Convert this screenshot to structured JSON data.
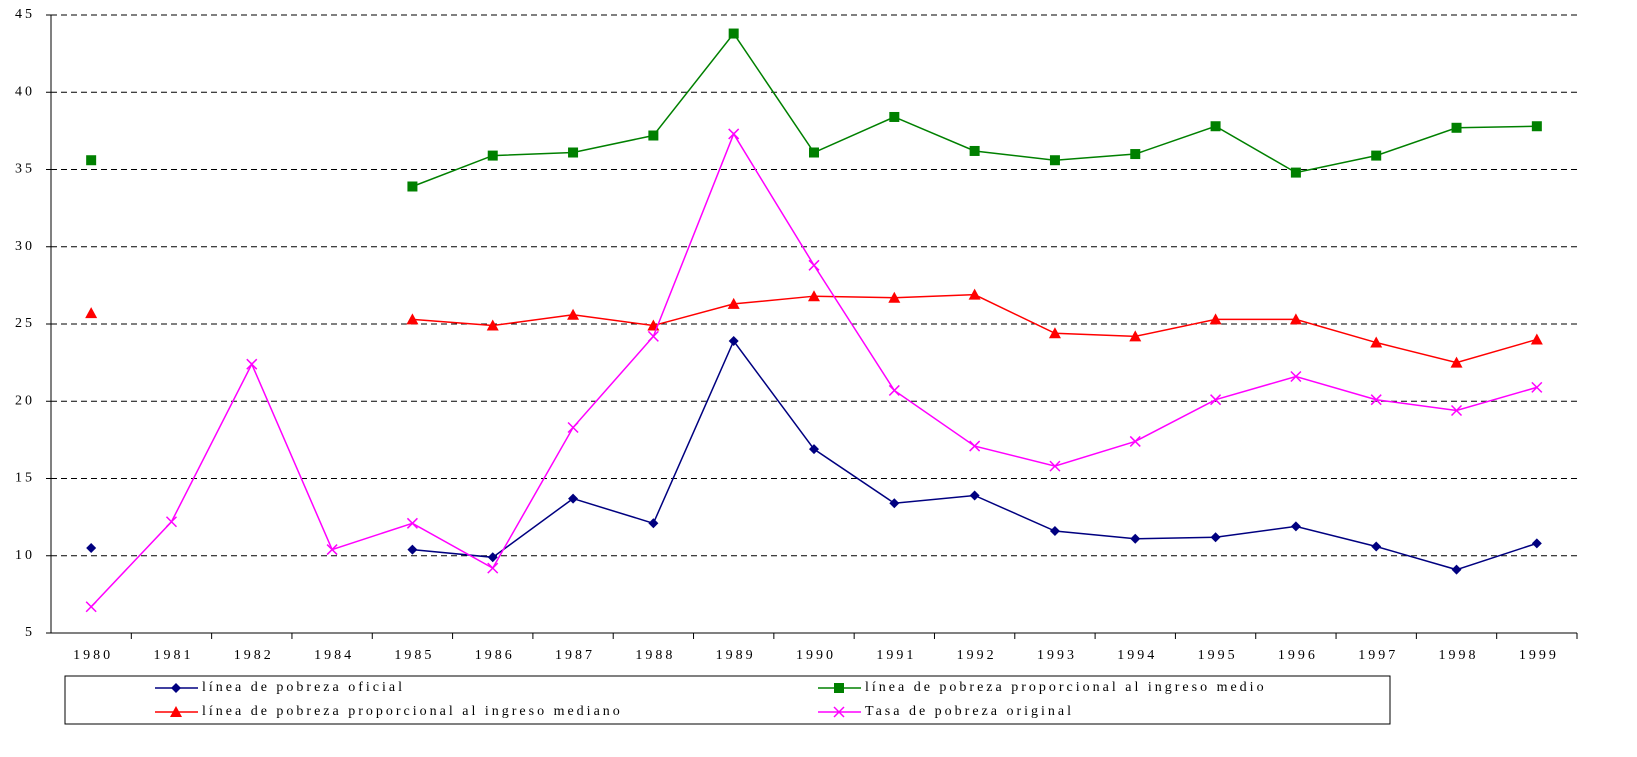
{
  "chart_data": {
    "type": "line",
    "categories": [
      "1980",
      "1981",
      "1982",
      "1984",
      "1985",
      "1986",
      "1987",
      "1988",
      "1989",
      "1990",
      "1991",
      "1992",
      "1993",
      "1994",
      "1995",
      "1996",
      "1997",
      "1998",
      "1999"
    ],
    "series": [
      {
        "name": "línea de pobreza oficial",
        "color": "#000080",
        "marker": "diamond",
        "values": [
          10.5,
          null,
          null,
          null,
          10.4,
          9.9,
          13.7,
          12.1,
          23.9,
          16.9,
          13.4,
          13.9,
          11.6,
          11.1,
          11.2,
          11.9,
          10.6,
          9.1,
          10.8
        ]
      },
      {
        "name": "línea de pobreza proporcional al ingreso medio",
        "color": "#008000",
        "marker": "square",
        "values": [
          35.6,
          null,
          null,
          null,
          33.9,
          35.9,
          36.1,
          37.2,
          43.8,
          36.1,
          38.4,
          36.2,
          35.6,
          36.0,
          37.8,
          34.8,
          35.9,
          37.7,
          37.8
        ]
      },
      {
        "name": "línea de pobreza proporcional al ingreso mediano",
        "color": "#ff0000",
        "marker": "triangle",
        "values": [
          25.7,
          null,
          null,
          null,
          25.3,
          24.9,
          25.6,
          24.9,
          26.3,
          26.8,
          26.7,
          26.9,
          24.4,
          24.2,
          25.3,
          25.3,
          23.8,
          22.5,
          24.0
        ]
      },
      {
        "name": "Tasa de pobreza original",
        "color": "#ff00ff",
        "marker": "x",
        "values": [
          6.7,
          12.2,
          22.4,
          10.4,
          12.1,
          9.2,
          18.3,
          24.2,
          37.3,
          28.8,
          20.7,
          17.1,
          15.8,
          17.4,
          20.1,
          21.6,
          20.1,
          19.4,
          20.9
        ]
      }
    ],
    "ylim": [
      5,
      45
    ],
    "yticks": [
      5,
      10,
      15,
      20,
      25,
      30,
      35,
      40,
      45
    ],
    "grid": true
  }
}
